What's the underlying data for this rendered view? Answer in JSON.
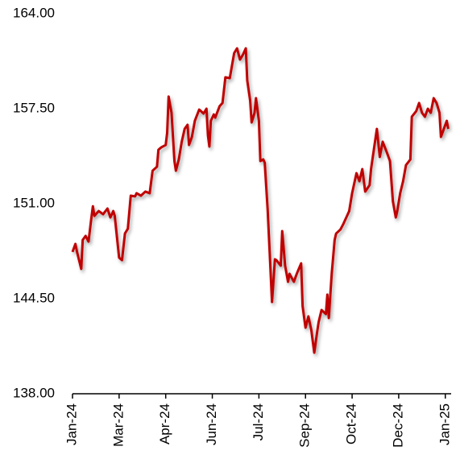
{
  "chart_data": {
    "type": "line",
    "x": [
      0,
      2,
      3,
      6,
      7,
      9,
      11,
      13,
      14,
      15,
      18,
      21,
      24,
      26,
      28,
      29,
      32,
      34,
      36,
      38,
      40,
      43,
      44,
      47,
      50,
      53,
      55,
      58,
      59,
      61,
      64,
      65,
      66,
      68,
      70,
      71,
      73,
      75,
      77,
      79,
      80,
      82,
      84,
      87,
      90,
      92,
      93,
      94,
      95,
      97,
      98,
      101,
      103,
      105,
      108,
      111,
      113,
      115,
      117,
      119,
      120,
      122,
      123,
      125,
      126,
      128,
      129,
      131,
      132,
      134,
      135,
      137,
      139,
      140,
      143,
      144,
      146,
      148,
      149,
      152,
      154,
      157,
      158,
      160,
      162,
      164,
      166,
      168,
      169,
      171,
      174,
      175,
      176,
      178,
      180,
      181,
      184,
      186,
      188,
      190,
      192,
      195,
      197,
      199,
      201,
      204,
      205,
      207,
      209,
      211,
      213,
      216,
      218,
      220,
      222,
      223,
      225,
      227,
      229,
      232,
      233,
      236,
      238,
      240,
      242,
      244,
      246,
      248,
      250,
      252,
      253,
      255,
      257,
      258
    ],
    "series": [
      {
        "color": "#c00000",
        "values": [
          147.7,
          148.25,
          147.75,
          146.54,
          148.52,
          148.8,
          148.41,
          150.06,
          150.83,
          150.17,
          150.5,
          150.28,
          150.67,
          150.06,
          150.5,
          150.17,
          147.31,
          147.14,
          148.96,
          149.29,
          151.55,
          151.5,
          151.72,
          151.55,
          151.83,
          151.72,
          153.26,
          153.53,
          154.69,
          154.86,
          155.02,
          155.85,
          158.33,
          157.22,
          153.92,
          153.26,
          154.03,
          155.24,
          156.12,
          156.4,
          155.02,
          155.57,
          156.67,
          157.44,
          157.17,
          157.5,
          155.68,
          154.91,
          156.67,
          157.11,
          156.89,
          157.67,
          157.89,
          159.65,
          159.59,
          161.3,
          161.63,
          160.86,
          161.19,
          161.63,
          159.43,
          158.05,
          156.56,
          157.22,
          158.22,
          156.67,
          153.92,
          154.03,
          153.81,
          150.61,
          148.52,
          144.28,
          147.2,
          147.14,
          146.76,
          149.13,
          146.76,
          145.66,
          146.21,
          145.66,
          146.21,
          146.92,
          144.0,
          142.52,
          143.29,
          142.35,
          140.81,
          142.24,
          142.9,
          143.73,
          143.45,
          144.78,
          143.18,
          146.21,
          148.52,
          148.96,
          149.24,
          149.62,
          150.06,
          150.5,
          151.72,
          153.09,
          152.54,
          153.37,
          151.83,
          152.27,
          153.37,
          154.75,
          156.12,
          154.2,
          155.24,
          154.47,
          153.92,
          151.17,
          150.06,
          150.5,
          151.72,
          152.54,
          153.64,
          154.03,
          156.95,
          157.33,
          157.89,
          157.22,
          156.95,
          157.5,
          157.22,
          158.22,
          157.89,
          157.22,
          155.57,
          156.12,
          156.67,
          156.12
        ]
      }
    ],
    "xlim": [
      0,
      260
    ],
    "xticks": [
      {
        "value": 0,
        "label": "Jan-24"
      },
      {
        "value": 32,
        "label": "Mar-24"
      },
      {
        "value": 64,
        "label": "Apr-24"
      },
      {
        "value": 96,
        "label": "Jun-24"
      },
      {
        "value": 128,
        "label": "Jul-24"
      },
      {
        "value": 160,
        "label": "Sep-24"
      },
      {
        "value": 192,
        "label": "Oct-24"
      },
      {
        "value": 224,
        "label": "Dec-24"
      },
      {
        "value": 256,
        "label": "Jan-25"
      }
    ],
    "ylim": [
      138,
      164
    ],
    "yticks": [
      {
        "value": 138,
        "label": "138.00"
      },
      {
        "value": 144.5,
        "label": "144.50"
      },
      {
        "value": 151,
        "label": "151.00"
      },
      {
        "value": 157.5,
        "label": "157.50"
      },
      {
        "value": 164,
        "label": "164.00"
      }
    ],
    "grid": false
  }
}
